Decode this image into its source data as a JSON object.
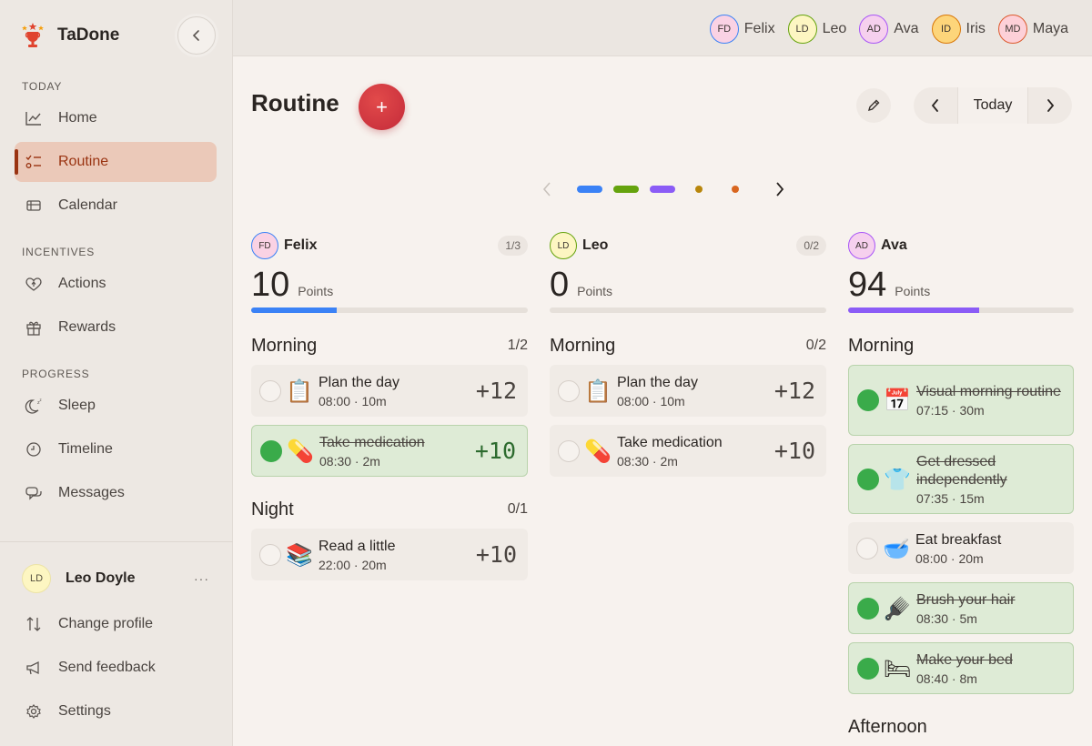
{
  "app": {
    "name": "TaDone"
  },
  "sidebar": {
    "sections": [
      {
        "label": "TODAY",
        "items": [
          {
            "label": "Home",
            "icon": "chart-line-icon",
            "active": false
          },
          {
            "label": "Routine",
            "icon": "checklist-icon",
            "active": true
          },
          {
            "label": "Calendar",
            "icon": "calendar-list-icon",
            "active": false
          }
        ]
      },
      {
        "label": "INCENTIVES",
        "items": [
          {
            "label": "Actions",
            "icon": "heart-icon",
            "active": false
          },
          {
            "label": "Rewards",
            "icon": "gift-icon",
            "active": false
          }
        ]
      },
      {
        "label": "PROGRESS",
        "items": [
          {
            "label": "Sleep",
            "icon": "moon-icon",
            "active": false
          },
          {
            "label": "Timeline",
            "icon": "clock-icon",
            "active": false
          },
          {
            "label": "Messages",
            "icon": "chat-icon",
            "active": false
          }
        ]
      }
    ],
    "profile": {
      "initials": "LD",
      "name": "Leo Doyle",
      "more": "···"
    },
    "footer": [
      {
        "label": "Change profile",
        "icon": "swap-icon"
      },
      {
        "label": "Send feedback",
        "icon": "megaphone-icon"
      },
      {
        "label": "Settings",
        "icon": "gear-icon"
      }
    ]
  },
  "topbar": {
    "members": [
      {
        "initials": "FD",
        "name": "Felix",
        "bg": "#fad2e4",
        "ring": "#3b82f6"
      },
      {
        "initials": "LD",
        "name": "Leo",
        "bg": "#fdf6c2",
        "ring": "#65a30d"
      },
      {
        "initials": "AD",
        "name": "Ava",
        "bg": "#f6d0ee",
        "ring": "#a855f7"
      },
      {
        "initials": "ID",
        "name": "Iris",
        "bg": "#fdd57a",
        "ring": "#d97706"
      },
      {
        "initials": "MD",
        "name": "Maya",
        "bg": "#fdd0d8",
        "ring": "#dc5a2e"
      }
    ]
  },
  "main": {
    "title": "Routine",
    "add_label": "+",
    "today_label": "Today"
  },
  "pager": {
    "colors": [
      "#3b82f6",
      "#65a30d",
      "#8b5cf6",
      "#b8860b",
      "#d9661f"
    ]
  },
  "columns": [
    {
      "initials": "FD",
      "name": "Felix",
      "count": "1/3",
      "points": "10",
      "points_label": "Points",
      "avatar_bg": "#fad2e4",
      "ring": "#3b82f6",
      "bar_color": "#3b82f6",
      "progress": 0.31,
      "sections": [
        {
          "title": "Morning",
          "count": "1/2",
          "tasks": [
            {
              "emoji": "📋",
              "title": "Plan the day",
              "meta": "08:00 · 10m",
              "points": "+12",
              "done": false
            },
            {
              "emoji": "💊",
              "title": "Take medication",
              "meta": "08:30 · 2m",
              "points": "+10",
              "done": true
            }
          ]
        },
        {
          "title": "Night",
          "count": "0/1",
          "tasks": [
            {
              "emoji": "📚",
              "title": "Read a little",
              "meta": "22:00 · 20m",
              "points": "+10",
              "done": false
            }
          ]
        }
      ]
    },
    {
      "initials": "LD",
      "name": "Leo",
      "count": "0/2",
      "points": "0",
      "points_label": "Points",
      "avatar_bg": "#fdf6c2",
      "ring": "#65a30d",
      "bar_color": "#65a30d",
      "progress": 0,
      "sections": [
        {
          "title": "Morning",
          "count": "0/2",
          "tasks": [
            {
              "emoji": "📋",
              "title": "Plan the day",
              "meta": "08:00 · 10m",
              "points": "+12",
              "done": false
            },
            {
              "emoji": "💊",
              "title": "Take medication",
              "meta": "08:30 · 2m",
              "points": "+10",
              "done": false
            }
          ]
        }
      ]
    },
    {
      "initials": "AD",
      "name": "Ava",
      "count": "",
      "points": "94",
      "points_label": "Points",
      "avatar_bg": "#f6d0ee",
      "ring": "#a855f7",
      "bar_color": "#8b5cf6",
      "progress": 0.58,
      "sections": [
        {
          "title": "Morning",
          "count": "",
          "tasks": [
            {
              "emoji": "📅",
              "title": "Visual morning routine",
              "meta": "07:15 · 30m",
              "points": "",
              "done": true
            },
            {
              "emoji": "👕",
              "title": "Get dressed independently",
              "meta": "07:35 · 15m",
              "points": "",
              "done": true
            },
            {
              "emoji": "🥣",
              "title": "Eat breakfast",
              "meta": "08:00 · 20m",
              "points": "",
              "done": false
            },
            {
              "emoji": "🪮",
              "title": "Brush your hair",
              "meta": "08:30 · 5m",
              "points": "",
              "done": true
            },
            {
              "emoji": "🛏",
              "title": "Make your bed",
              "meta": "08:40 · 8m",
              "points": "",
              "done": true
            }
          ]
        },
        {
          "title": "Afternoon",
          "count": "",
          "tasks": []
        }
      ]
    }
  ]
}
